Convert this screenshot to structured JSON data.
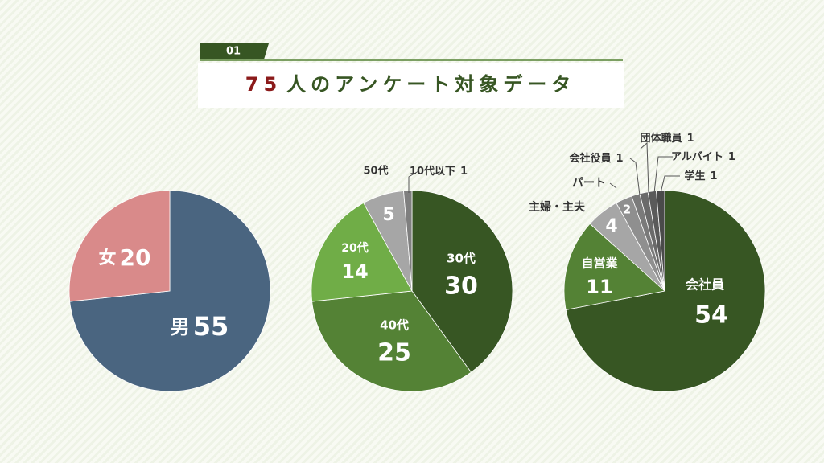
{
  "header": {
    "badge": "01",
    "title_number": "75",
    "title_text": "人のアンケート対象データ"
  },
  "chart_data": [
    {
      "type": "pie",
      "categories": [
        "男",
        "女"
      ],
      "values": [
        55,
        20
      ],
      "colors": [
        "#4a6580",
        "#d98a8a"
      ]
    },
    {
      "type": "pie",
      "categories": [
        "30代",
        "40代",
        "20代",
        "50代",
        "10代以下"
      ],
      "values": [
        30,
        25,
        14,
        5,
        1
      ],
      "colors": [
        "#375623",
        "#548235",
        "#70ad47",
        "#a6a6a6",
        "#7f7f7f"
      ]
    },
    {
      "type": "pie",
      "categories": [
        "会社員",
        "自営業",
        "主婦・主夫",
        "パート",
        "会社役員",
        "団体職員",
        "アルバイト",
        "学生"
      ],
      "values": [
        54,
        11,
        4,
        2,
        1,
        1,
        1,
        1
      ],
      "colors": [
        "#375623",
        "#548235",
        "#a6a6a6",
        "#8f8f8f",
        "#7a7a7a",
        "#6a6a6a",
        "#5a5a5a",
        "#4a4a4a"
      ]
    }
  ]
}
